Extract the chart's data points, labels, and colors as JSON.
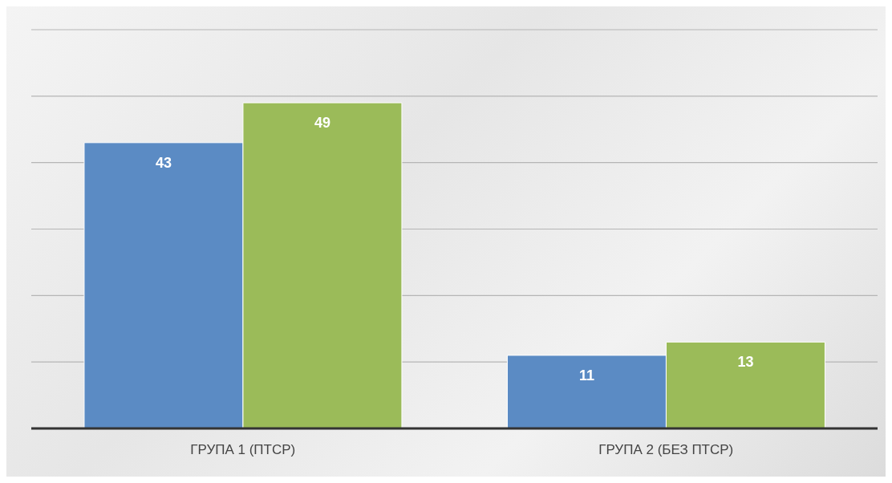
{
  "chart_data": {
    "type": "bar",
    "categories": [
      "ГРУПА 1 (ПТСР)",
      "ГРУПА 2 (БЕЗ ПТСР)"
    ],
    "series": [
      {
        "color": "#5b8bc4",
        "values": [
          43,
          11
        ]
      },
      {
        "color": "#9bbb59",
        "values": [
          49,
          13
        ]
      }
    ],
    "ylim": [
      0,
      60
    ],
    "yticks": [
      {
        "value": 0,
        "label": null
      },
      {
        "value": 10,
        "label": null
      },
      {
        "value": 20,
        "label": null
      },
      {
        "value": 30,
        "label": null
      },
      {
        "value": 40,
        "label": null
      },
      {
        "value": 50,
        "label": null
      },
      {
        "value": 60,
        "label": null
      }
    ],
    "grid": "y",
    "tick_labels": "x",
    "data_labels": true
  }
}
